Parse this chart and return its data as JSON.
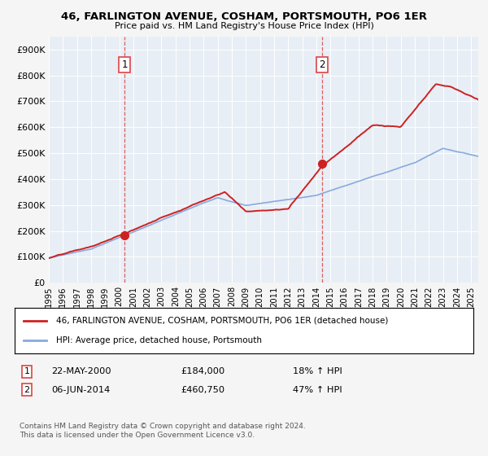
{
  "title": "46, FARLINGTON AVENUE, COSHAM, PORTSMOUTH, PO6 1ER",
  "subtitle": "Price paid vs. HM Land Registry's House Price Index (HPI)",
  "sale1_date": "22-MAY-2000",
  "sale1_price": 184000,
  "sale1_hpi": "18% ↑ HPI",
  "sale2_date": "06-JUN-2014",
  "sale2_price": 460750,
  "sale2_hpi": "47% ↑ HPI",
  "legend_house": "46, FARLINGTON AVENUE, COSHAM, PORTSMOUTH, PO6 1ER (detached house)",
  "legend_hpi": "HPI: Average price, detached house, Portsmouth",
  "footnote": "Contains HM Land Registry data © Crown copyright and database right 2024.\nThis data is licensed under the Open Government Licence v3.0.",
  "house_color": "#cc2222",
  "hpi_color": "#88aadd",
  "dashed_color": "#dd4444",
  "background_color": "#f5f5f5",
  "plot_bg_color": "#e8eef5",
  "grid_color": "#ffffff",
  "ylim": [
    0,
    950000
  ],
  "yticks": [
    0,
    100000,
    200000,
    300000,
    400000,
    500000,
    600000,
    700000,
    800000,
    900000
  ],
  "ytick_labels": [
    "£0",
    "£100K",
    "£200K",
    "£300K",
    "£400K",
    "£500K",
    "£600K",
    "£700K",
    "£800K",
    "£900K"
  ],
  "sale1_x": 2000.38,
  "sale2_x": 2014.42,
  "xmin": 1995,
  "xmax": 2025.5,
  "xticks": [
    1995,
    1996,
    1997,
    1998,
    1999,
    2000,
    2001,
    2002,
    2003,
    2004,
    2005,
    2006,
    2007,
    2008,
    2009,
    2010,
    2011,
    2012,
    2013,
    2014,
    2015,
    2016,
    2017,
    2018,
    2019,
    2020,
    2021,
    2022,
    2023,
    2024,
    2025
  ]
}
